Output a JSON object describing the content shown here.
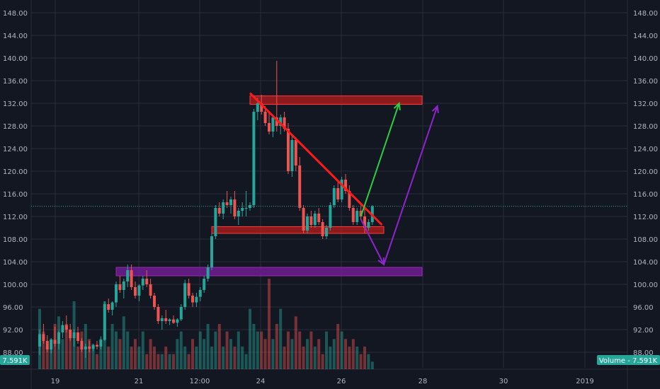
{
  "chart_data": {
    "type": "candlestick",
    "y_axis_ticks": [
      "88.00",
      "92.00",
      "96.00",
      "100.00",
      "104.00",
      "108.00",
      "112.00",
      "116.00",
      "120.00",
      "124.00",
      "128.00",
      "132.00",
      "136.00",
      "140.00",
      "144.00",
      "148.00"
    ],
    "ylim": [
      87,
      150
    ],
    "x_axis_ticks": [
      "19",
      "21",
      "12:00",
      "24",
      "26",
      "28",
      "30",
      "2019"
    ],
    "current_price": 113.8,
    "left_badge": "7.591K",
    "right_badge": "Volume - 7.591K",
    "colors": {
      "background": "#131722",
      "grid": "#2a2e39",
      "up": "#26a69a",
      "down": "#ef5350",
      "zone_red": "#b71c1c",
      "zone_purple": "#7b1fa2",
      "resistance_line": "#ff1a1a",
      "arrow_green": "#2ecc40",
      "arrow_purple": "#8e24cc"
    },
    "candles": [
      {
        "o": 89.0,
        "h": 92.0,
        "l": 87.5,
        "c": 91.2
      },
      {
        "o": 91.2,
        "h": 93.0,
        "l": 89.5,
        "c": 90.0
      },
      {
        "o": 90.0,
        "h": 91.0,
        "l": 88.0,
        "c": 88.5
      },
      {
        "o": 88.5,
        "h": 90.5,
        "l": 87.8,
        "c": 90.2
      },
      {
        "o": 90.2,
        "h": 92.5,
        "l": 89.0,
        "c": 89.5
      },
      {
        "o": 89.5,
        "h": 91.8,
        "l": 88.5,
        "c": 91.5
      },
      {
        "o": 91.5,
        "h": 93.5,
        "l": 90.5,
        "c": 92.8
      },
      {
        "o": 92.8,
        "h": 94.5,
        "l": 91.5,
        "c": 92.0
      },
      {
        "o": 92.0,
        "h": 93.0,
        "l": 90.0,
        "c": 90.5
      },
      {
        "o": 90.5,
        "h": 92.0,
        "l": 89.0,
        "c": 91.5
      },
      {
        "o": 91.5,
        "h": 92.5,
        "l": 89.5,
        "c": 90.0
      },
      {
        "o": 90.0,
        "h": 90.5,
        "l": 88.0,
        "c": 88.5
      },
      {
        "o": 88.5,
        "h": 89.5,
        "l": 87.0,
        "c": 89.0
      },
      {
        "o": 89.0,
        "h": 90.0,
        "l": 88.0,
        "c": 88.6
      },
      {
        "o": 88.6,
        "h": 89.5,
        "l": 88.2,
        "c": 89.3
      },
      {
        "o": 89.3,
        "h": 90.0,
        "l": 88.5,
        "c": 89.0
      },
      {
        "o": 89.0,
        "h": 90.8,
        "l": 88.5,
        "c": 90.2
      },
      {
        "o": 90.2,
        "h": 97.0,
        "l": 90.0,
        "c": 96.5
      },
      {
        "o": 96.5,
        "h": 97.5,
        "l": 95.0,
        "c": 95.5
      },
      {
        "o": 95.5,
        "h": 97.0,
        "l": 94.5,
        "c": 96.8
      },
      {
        "o": 96.8,
        "h": 100.5,
        "l": 96.0,
        "c": 100.0
      },
      {
        "o": 100.0,
        "h": 101.5,
        "l": 98.5,
        "c": 99.0
      },
      {
        "o": 99.0,
        "h": 101.0,
        "l": 97.5,
        "c": 100.5
      },
      {
        "o": 100.5,
        "h": 103.5,
        "l": 99.5,
        "c": 102.5
      },
      {
        "o": 102.5,
        "h": 103.5,
        "l": 99.0,
        "c": 99.5
      },
      {
        "o": 99.5,
        "h": 100.5,
        "l": 97.5,
        "c": 98.0
      },
      {
        "o": 98.0,
        "h": 100.0,
        "l": 97.0,
        "c": 99.8
      },
      {
        "o": 99.8,
        "h": 101.5,
        "l": 99.0,
        "c": 101.0
      },
      {
        "o": 101.0,
        "h": 102.5,
        "l": 99.5,
        "c": 100.0
      },
      {
        "o": 100.0,
        "h": 101.0,
        "l": 97.5,
        "c": 98.0
      },
      {
        "o": 98.0,
        "h": 98.5,
        "l": 95.5,
        "c": 96.0
      },
      {
        "o": 96.0,
        "h": 96.5,
        "l": 93.0,
        "c": 93.5
      },
      {
        "o": 93.5,
        "h": 94.5,
        "l": 92.0,
        "c": 94.0
      },
      {
        "o": 94.0,
        "h": 95.5,
        "l": 93.0,
        "c": 93.5
      },
      {
        "o": 93.5,
        "h": 94.0,
        "l": 92.8,
        "c": 93.8
      },
      {
        "o": 93.8,
        "h": 94.5,
        "l": 93.0,
        "c": 93.2
      },
      {
        "o": 93.2,
        "h": 94.0,
        "l": 92.5,
        "c": 93.8
      },
      {
        "o": 93.8,
        "h": 96.5,
        "l": 93.5,
        "c": 96.0
      },
      {
        "o": 96.0,
        "h": 100.8,
        "l": 95.5,
        "c": 100.2
      },
      {
        "o": 100.2,
        "h": 101.0,
        "l": 97.5,
        "c": 98.0
      },
      {
        "o": 98.0,
        "h": 98.5,
        "l": 96.0,
        "c": 96.8
      },
      {
        "o": 96.8,
        "h": 98.5,
        "l": 96.0,
        "c": 97.8
      },
      {
        "o": 97.8,
        "h": 99.5,
        "l": 97.0,
        "c": 99.0
      },
      {
        "o": 99.0,
        "h": 101.5,
        "l": 98.5,
        "c": 101.0
      },
      {
        "o": 101.0,
        "h": 103.5,
        "l": 100.5,
        "c": 103.0
      },
      {
        "o": 103.0,
        "h": 109.0,
        "l": 102.5,
        "c": 108.5
      },
      {
        "o": 108.5,
        "h": 114.0,
        "l": 108.0,
        "c": 113.5
      },
      {
        "o": 113.5,
        "h": 114.5,
        "l": 112.0,
        "c": 112.5
      },
      {
        "o": 112.5,
        "h": 115.0,
        "l": 111.5,
        "c": 114.5
      },
      {
        "o": 114.5,
        "h": 116.5,
        "l": 113.5,
        "c": 114.0
      },
      {
        "o": 114.0,
        "h": 115.5,
        "l": 112.5,
        "c": 115.0
      },
      {
        "o": 115.0,
        "h": 116.5,
        "l": 111.5,
        "c": 112.0
      },
      {
        "o": 112.0,
        "h": 113.5,
        "l": 110.5,
        "c": 113.0
      },
      {
        "o": 113.0,
        "h": 114.5,
        "l": 112.0,
        "c": 113.5
      },
      {
        "o": 113.5,
        "h": 116.5,
        "l": 112.0,
        "c": 113.5
      },
      {
        "o": 113.5,
        "h": 114.5,
        "l": 113.0,
        "c": 114.0
      },
      {
        "o": 114.0,
        "h": 131.0,
        "l": 113.5,
        "c": 130.5
      },
      {
        "o": 130.5,
        "h": 133.0,
        "l": 129.0,
        "c": 132.0
      },
      {
        "o": 132.0,
        "h": 133.5,
        "l": 130.0,
        "c": 130.5
      },
      {
        "o": 130.5,
        "h": 131.5,
        "l": 128.0,
        "c": 128.5
      },
      {
        "o": 128.5,
        "h": 130.5,
        "l": 126.5,
        "c": 127.0
      },
      {
        "o": 127.0,
        "h": 130.0,
        "l": 126.0,
        "c": 129.5
      },
      {
        "o": 129.5,
        "h": 139.5,
        "l": 127.0,
        "c": 128.0
      },
      {
        "o": 128.0,
        "h": 130.0,
        "l": 126.5,
        "c": 129.5
      },
      {
        "o": 129.5,
        "h": 130.5,
        "l": 127.0,
        "c": 127.5
      },
      {
        "o": 127.5,
        "h": 128.5,
        "l": 119.5,
        "c": 120.0
      },
      {
        "o": 120.0,
        "h": 126.5,
        "l": 119.0,
        "c": 125.5
      },
      {
        "o": 125.5,
        "h": 126.0,
        "l": 120.0,
        "c": 121.0
      },
      {
        "o": 121.0,
        "h": 122.5,
        "l": 113.0,
        "c": 113.5
      },
      {
        "o": 113.5,
        "h": 114.0,
        "l": 109.0,
        "c": 109.5
      },
      {
        "o": 109.5,
        "h": 112.5,
        "l": 109.0,
        "c": 112.0
      },
      {
        "o": 112.0,
        "h": 113.0,
        "l": 110.0,
        "c": 110.5
      },
      {
        "o": 110.5,
        "h": 113.0,
        "l": 110.0,
        "c": 112.5
      },
      {
        "o": 112.5,
        "h": 113.5,
        "l": 110.5,
        "c": 111.0
      },
      {
        "o": 111.0,
        "h": 111.5,
        "l": 108.0,
        "c": 108.5
      },
      {
        "o": 108.5,
        "h": 110.5,
        "l": 108.0,
        "c": 110.0
      },
      {
        "o": 110.0,
        "h": 114.5,
        "l": 109.5,
        "c": 114.0
      },
      {
        "o": 114.0,
        "h": 117.5,
        "l": 113.5,
        "c": 117.0
      },
      {
        "o": 117.0,
        "h": 118.0,
        "l": 114.5,
        "c": 115.0
      },
      {
        "o": 115.0,
        "h": 119.0,
        "l": 114.5,
        "c": 118.5
      },
      {
        "o": 118.5,
        "h": 119.5,
        "l": 116.0,
        "c": 116.5
      },
      {
        "o": 116.5,
        "h": 117.5,
        "l": 113.0,
        "c": 113.5
      },
      {
        "o": 113.5,
        "h": 114.0,
        "l": 110.5,
        "c": 111.0
      },
      {
        "o": 111.0,
        "h": 113.5,
        "l": 110.5,
        "c": 113.0
      },
      {
        "o": 113.0,
        "h": 114.0,
        "l": 111.5,
        "c": 112.0
      },
      {
        "o": 112.0,
        "h": 113.5,
        "l": 109.0,
        "c": 110.0
      },
      {
        "o": 110.0,
        "h": 111.5,
        "l": 109.5,
        "c": 111.0
      },
      {
        "o": 111.0,
        "h": 114.0,
        "l": 110.5,
        "c": 113.8
      }
    ],
    "volumes": [
      8,
      5,
      3,
      4,
      6,
      7,
      4,
      6,
      5,
      9,
      3,
      5,
      6,
      4,
      3,
      2,
      4,
      9,
      3,
      6,
      5,
      4,
      7,
      5,
      3,
      4,
      3,
      5,
      2,
      4,
      3,
      2,
      2,
      3,
      2,
      2,
      4,
      5,
      3,
      2,
      4,
      3,
      5,
      4,
      6,
      3,
      5,
      6,
      3,
      5,
      4,
      3,
      5,
      3,
      2,
      8,
      6,
      5,
      5,
      4,
      12,
      4,
      6,
      8,
      3,
      5,
      4,
      7,
      5,
      3,
      4,
      5,
      3,
      4,
      2,
      5,
      3,
      4,
      6,
      5,
      4,
      3,
      4,
      3,
      2,
      3,
      2,
      1
    ],
    "zones": [
      {
        "from_candle": 55,
        "to_candle": 100,
        "low": 131.8,
        "high": 133.3,
        "color": "zone_red"
      },
      {
        "from_candle": 45,
        "to_candle": 90,
        "low": 109.0,
        "high": 110.2,
        "color": "zone_red"
      },
      {
        "from_candle": 20,
        "to_candle": 100,
        "low": 101.5,
        "high": 103.0,
        "color": "zone_purple"
      }
    ],
    "annotations": {
      "resistance": {
        "from": [
          55,
          133.8
        ],
        "to": [
          89.5,
          110.5
        ]
      },
      "green_arrow": {
        "from": [
          84,
          112.0
        ],
        "to": [
          94,
          132.0
        ]
      },
      "purple_down": {
        "from": [
          84,
          111.5
        ],
        "to": [
          90,
          103.5
        ]
      },
      "purple_up": {
        "from": [
          90,
          103.5
        ],
        "to": [
          104,
          131.5
        ]
      }
    }
  }
}
